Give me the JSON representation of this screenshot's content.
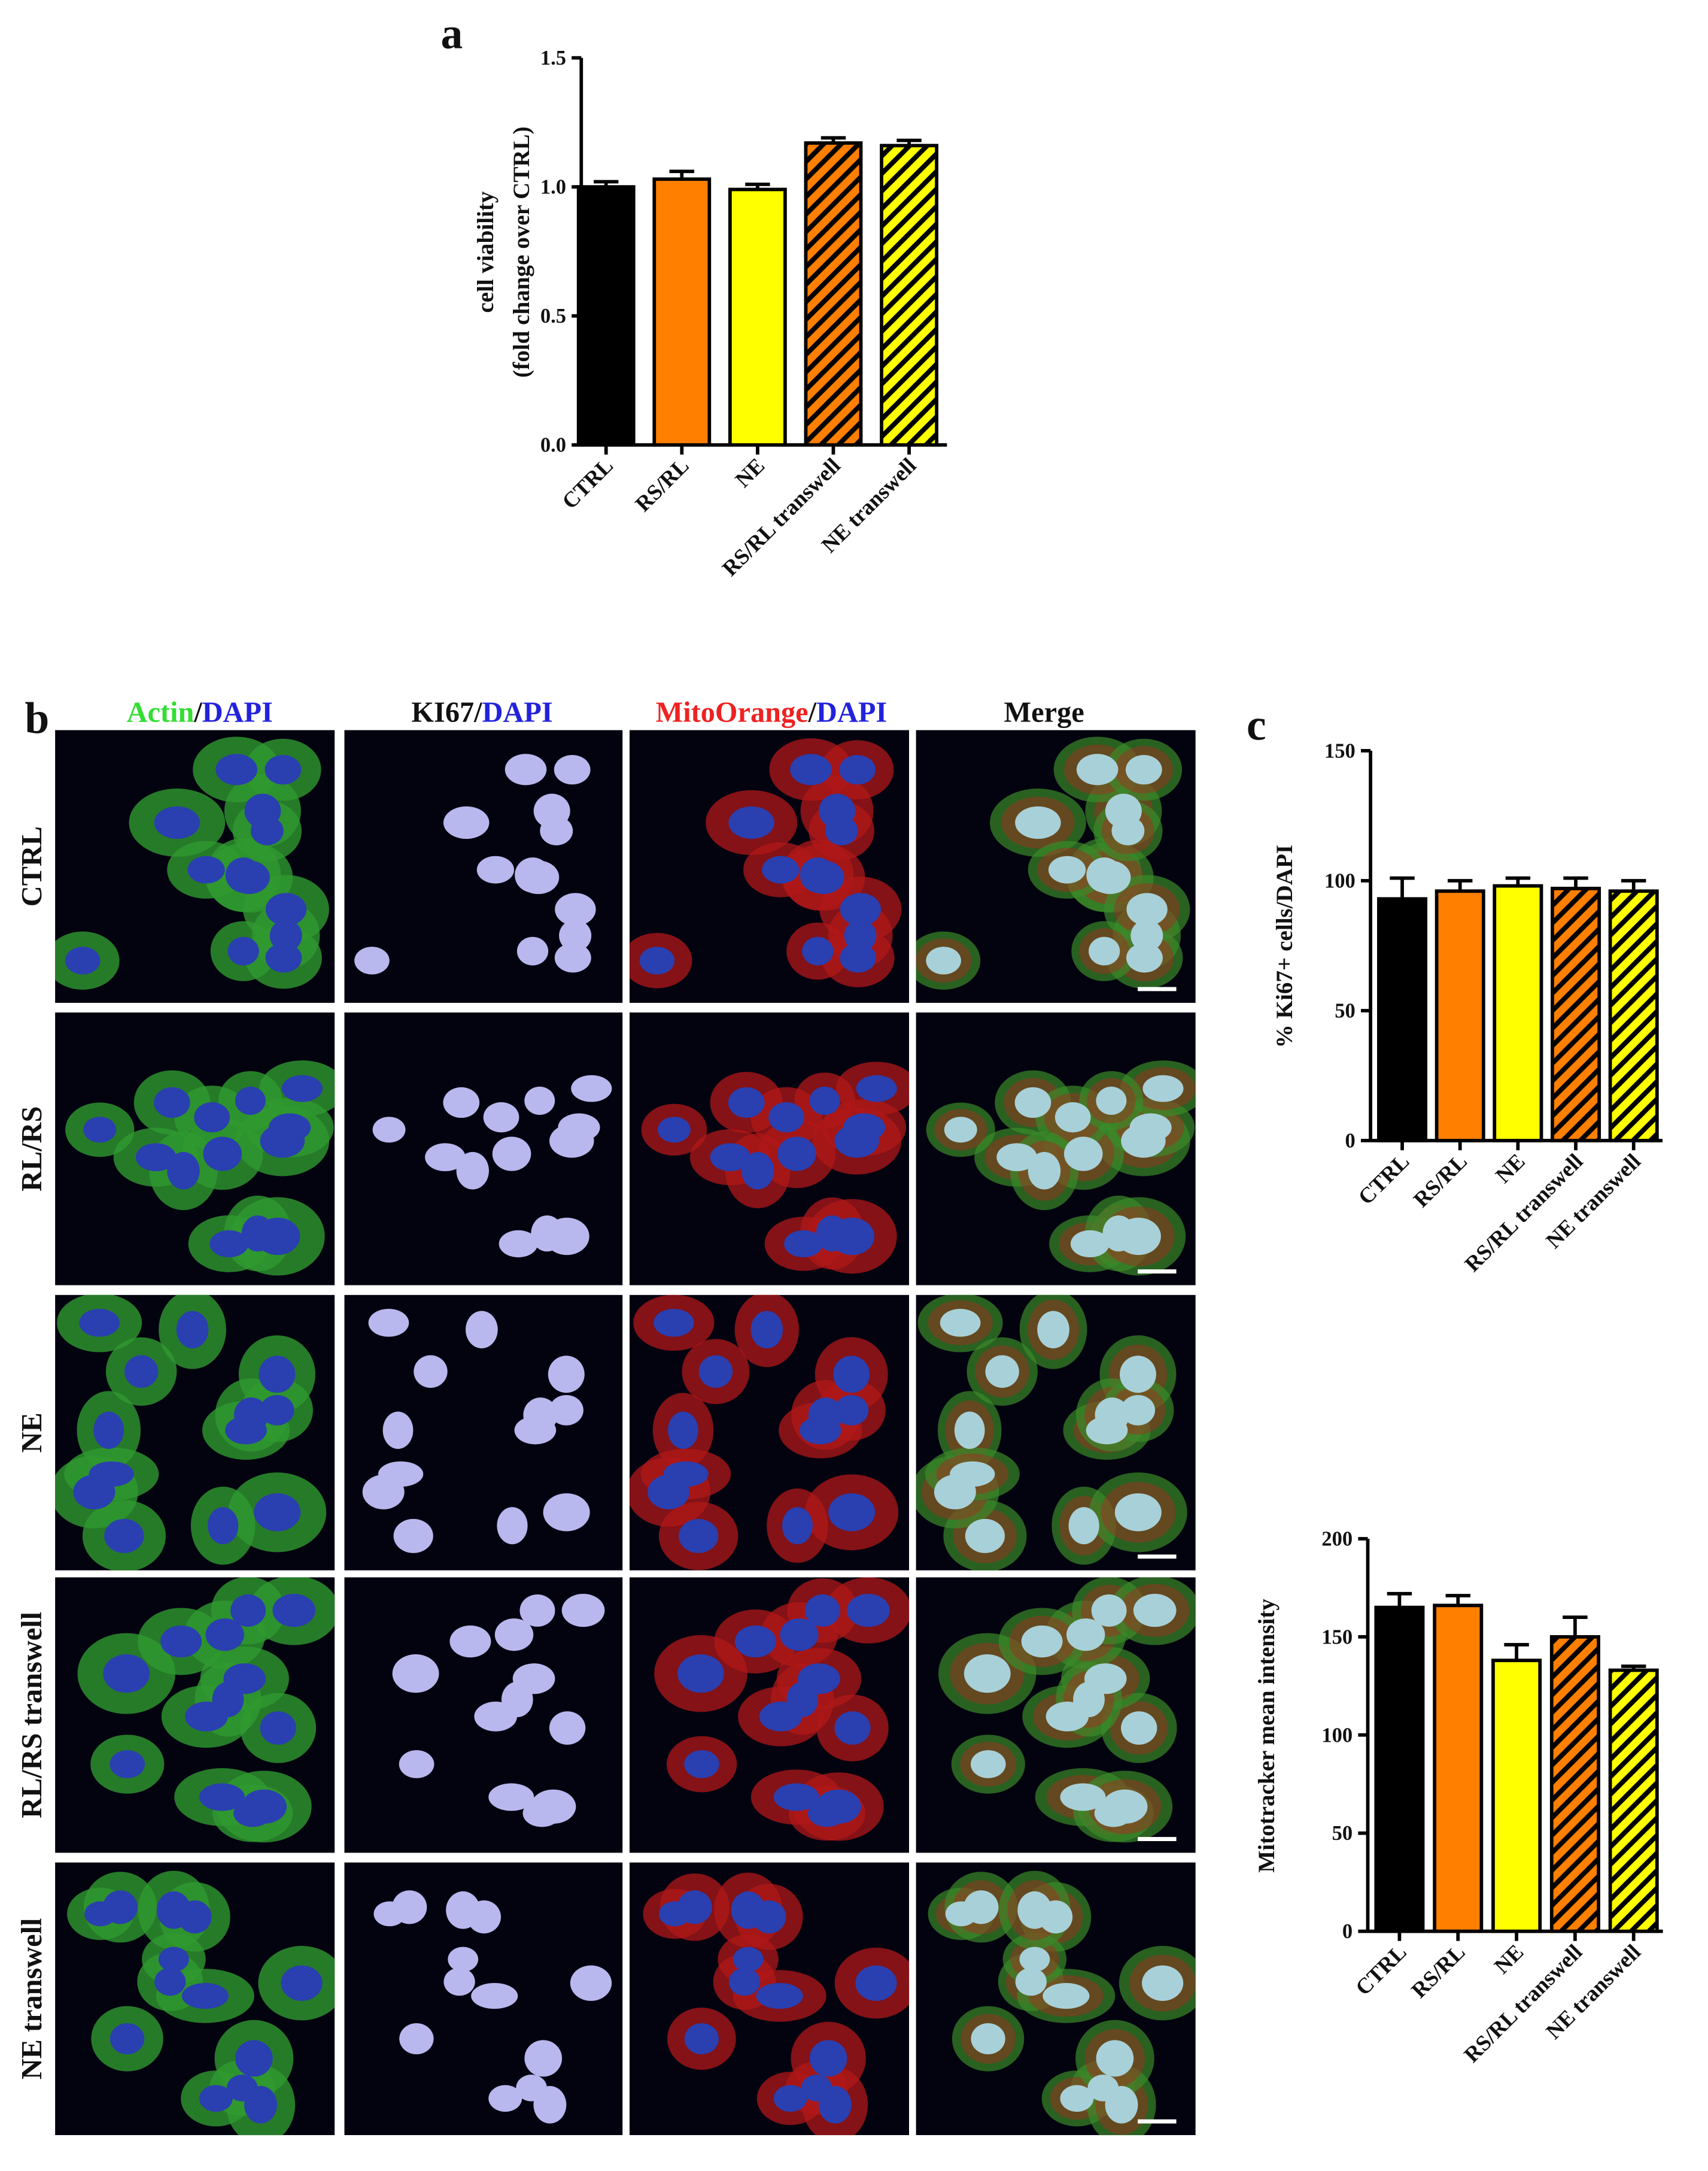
{
  "panel_labels": [
    "a",
    "b",
    "c"
  ],
  "chart_data": [
    {
      "type": "bar",
      "ylabel": [
        "cell viability",
        "(fold change over CTRL)"
      ],
      "categories": [
        "CTRL",
        "RS/RL",
        "NE",
        "RS/RL transwell",
        "NE transwell"
      ],
      "values": [
        1.0,
        1.03,
        0.99,
        1.17,
        1.16
      ],
      "errors": [
        0.02,
        0.03,
        0.02,
        0.02,
        0.02
      ],
      "colors": [
        "#000000",
        "#ff7f00",
        "#ffff00",
        "#ff7f00",
        "#ffff00"
      ],
      "hatched": [
        false,
        false,
        false,
        true,
        true
      ],
      "ylim": [
        0,
        1.5
      ],
      "yticks": [
        {
          "value": 0,
          "label": "0.0"
        },
        0.5,
        {
          "value": 1,
          "label": "1.0"
        },
        1.5
      ]
    },
    {
      "type": "bar",
      "ylabel": [
        "% Ki67+ cells/DAPI"
      ],
      "categories": [
        "CTRL",
        "RS/RL",
        "NE",
        "RS/RL transwell",
        "NE transwell"
      ],
      "values": [
        93,
        96,
        98,
        97,
        96
      ],
      "errors": [
        8,
        4,
        3,
        4,
        4
      ],
      "colors": [
        "#000000",
        "#ff7f00",
        "#ffff00",
        "#ff7f00",
        "#ffff00"
      ],
      "hatched": [
        false,
        false,
        false,
        true,
        true
      ],
      "ylim": [
        0,
        150
      ],
      "yticks": [
        0,
        50,
        100,
        150
      ]
    },
    {
      "type": "bar",
      "ylabel": [
        "Mitotracker mean intensity"
      ],
      "categories": [
        "CTRL",
        "RS/RL",
        "NE",
        "RS/RL transwell",
        "NE transwell"
      ],
      "values": [
        165,
        166,
        138,
        150,
        133
      ],
      "errors": [
        7,
        5,
        8,
        10,
        2
      ],
      "colors": [
        "#000000",
        "#ff7f00",
        "#ffff00",
        "#ff7f00",
        "#ffff00"
      ],
      "hatched": [
        false,
        false,
        false,
        true,
        true
      ],
      "ylim": [
        0,
        200
      ],
      "yticks": [
        0,
        50,
        100,
        150,
        200
      ]
    }
  ],
  "microscopy": {
    "column_headers": [
      [
        {
          "text": "Actin",
          "color": "#33dd33"
        },
        {
          "text": "/",
          "color": "#111111"
        },
        {
          "text": "DAPI",
          "color": "#2222dd"
        }
      ],
      [
        {
          "text": "KI67",
          "color": "#111111"
        },
        {
          "text": "/",
          "color": "#111111"
        },
        {
          "text": "DAPI",
          "color": "#2222dd"
        }
      ],
      [
        {
          "text": "MitoOrange",
          "color": "#ee2222"
        },
        {
          "text": "/",
          "color": "#111111"
        },
        {
          "text": "DAPI",
          "color": "#2222dd"
        }
      ],
      [
        {
          "text": "Merge",
          "color": "#111111"
        }
      ]
    ],
    "row_labels": [
      "CTRL",
      "RL/RS",
      "NE",
      "RL/RS transwell",
      "NE transwell"
    ]
  }
}
